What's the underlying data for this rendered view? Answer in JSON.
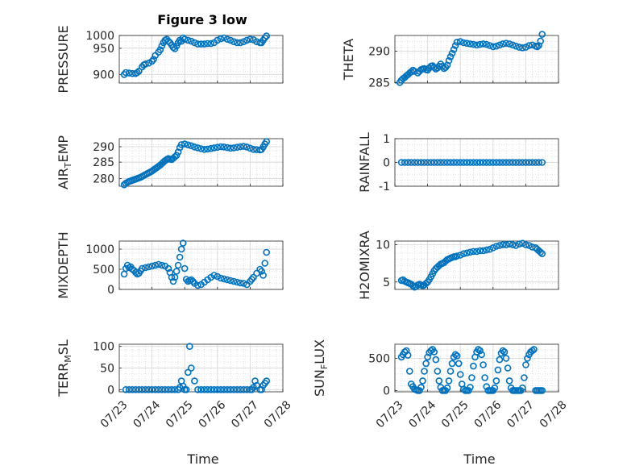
{
  "figure": {
    "title": "Figure 3 low",
    "x_label": "Time",
    "x_ticks": [
      "07/23",
      "07/24",
      "07/25",
      "07/26",
      "07/27",
      "07/28"
    ],
    "marker_color": "#0072BD",
    "grid": "major and minor dotted"
  },
  "chart_data": [
    {
      "type": "scatter",
      "id": "pressure",
      "ylabel": "PRESSURE",
      "ylim": [
        900,
        1000
      ],
      "yticks": [
        "900",
        "950",
        "1000"
      ],
      "xlim": [
        0,
        5
      ],
      "x": [
        0.15,
        0.2,
        0.3,
        0.4,
        0.5,
        0.55,
        0.6,
        0.7,
        0.75,
        0.8,
        0.9,
        1.0,
        1.05,
        1.1,
        1.2,
        1.25,
        1.3,
        1.35,
        1.4,
        1.45,
        1.5,
        1.55,
        1.6,
        1.65,
        1.7,
        1.75,
        1.8,
        1.85,
        1.9,
        1.95,
        2.0,
        2.1,
        2.2,
        2.3,
        2.4,
        2.5,
        2.6,
        2.7,
        2.8,
        2.9,
        3.0,
        3.1,
        3.2,
        3.3,
        3.4,
        3.5,
        3.6,
        3.7,
        3.8,
        3.9,
        4.0,
        4.1,
        4.2,
        4.3,
        4.35,
        4.4,
        4.45,
        4.5
      ],
      "y": [
        918,
        922,
        921,
        920,
        920,
        922,
        925,
        934,
        938,
        940,
        942,
        946,
        950,
        958,
        965,
        970,
        978,
        985,
        990,
        992,
        988,
        985,
        980,
        975,
        972,
        978,
        985,
        990,
        988,
        995,
        992,
        990,
        988,
        985,
        982,
        982,
        982,
        983,
        983,
        985,
        990,
        993,
        995,
        992,
        990,
        987,
        985,
        985,
        987,
        990,
        992,
        991,
        987,
        985,
        985,
        990,
        995,
        999
      ]
    },
    {
      "type": "scatter",
      "id": "theta",
      "ylabel": "THETA",
      "ylim": [
        284.5,
        293
      ],
      "yticks": [
        "285",
        "290"
      ],
      "xlim": [
        0,
        5
      ],
      "x": [
        0.15,
        0.2,
        0.25,
        0.3,
        0.35,
        0.4,
        0.45,
        0.5,
        0.55,
        0.6,
        0.7,
        0.75,
        0.8,
        0.85,
        0.9,
        0.95,
        1.0,
        1.05,
        1.1,
        1.15,
        1.2,
        1.25,
        1.3,
        1.35,
        1.4,
        1.45,
        1.5,
        1.55,
        1.6,
        1.65,
        1.7,
        1.75,
        1.8,
        1.85,
        1.9,
        2.0,
        2.1,
        2.2,
        2.3,
        2.4,
        2.5,
        2.6,
        2.7,
        2.8,
        2.9,
        3.0,
        3.1,
        3.2,
        3.3,
        3.4,
        3.5,
        3.6,
        3.7,
        3.8,
        3.9,
        4.0,
        4.1,
        4.2,
        4.3,
        4.35,
        4.4,
        4.45,
        4.5
      ],
      "y": [
        284.6,
        285.0,
        285.3,
        285.5,
        285.8,
        286.0,
        286.3,
        286.5,
        286.8,
        286.6,
        286.3,
        286.6,
        286.9,
        287.0,
        287.1,
        286.9,
        286.8,
        287.2,
        287.5,
        287.6,
        287.3,
        287.0,
        287.2,
        287.5,
        287.9,
        287.5,
        287.1,
        287.3,
        287.7,
        288.5,
        289.2,
        289.8,
        290.5,
        291.2,
        291.8,
        291.9,
        291.7,
        291.6,
        291.5,
        291.4,
        291.3,
        291.4,
        291.5,
        291.4,
        291.2,
        291.0,
        291.1,
        291.3,
        291.5,
        291.6,
        291.5,
        291.3,
        291.1,
        290.9,
        290.8,
        290.9,
        291.2,
        291.3,
        291.1,
        291.0,
        291.2,
        292.0,
        293.2
      ]
    },
    {
      "type": "scatter",
      "id": "air_temp",
      "ylabel": "AIR_TEMP",
      "ylim": [
        277,
        293
      ],
      "yticks": [
        "280",
        "285",
        "290"
      ],
      "xlim": [
        0,
        5
      ],
      "x": [
        0.15,
        0.2,
        0.25,
        0.3,
        0.35,
        0.4,
        0.45,
        0.5,
        0.55,
        0.6,
        0.65,
        0.7,
        0.75,
        0.8,
        0.85,
        0.9,
        0.95,
        1.0,
        1.05,
        1.1,
        1.15,
        1.2,
        1.25,
        1.3,
        1.35,
        1.4,
        1.45,
        1.5,
        1.55,
        1.6,
        1.65,
        1.7,
        1.75,
        1.8,
        1.85,
        1.9,
        2.0,
        2.1,
        2.2,
        2.3,
        2.4,
        2.5,
        2.6,
        2.7,
        2.8,
        2.9,
        3.0,
        3.1,
        3.2,
        3.3,
        3.4,
        3.5,
        3.6,
        3.7,
        3.8,
        3.9,
        4.0,
        4.1,
        4.2,
        4.3,
        4.35,
        4.4,
        4.45,
        4.5
      ],
      "y": [
        277.5,
        278.0,
        278.3,
        278.6,
        278.8,
        279.0,
        279.2,
        279.4,
        279.6,
        279.8,
        280.0,
        280.3,
        280.6,
        280.9,
        281.2,
        281.5,
        281.8,
        282.1,
        282.5,
        282.9,
        283.3,
        283.7,
        284.1,
        284.6,
        285.1,
        285.6,
        286.0,
        286.3,
        286.1,
        286.0,
        286.4,
        286.9,
        287.4,
        288.5,
        290.0,
        291.0,
        291.2,
        290.9,
        290.6,
        290.2,
        289.9,
        289.6,
        289.4,
        289.5,
        289.7,
        289.9,
        290.1,
        290.3,
        290.2,
        290.0,
        289.8,
        289.9,
        290.1,
        290.3,
        290.4,
        290.2,
        289.8,
        289.4,
        289.3,
        289.2,
        289.4,
        290.2,
        291.2,
        292.0
      ]
    },
    {
      "type": "scatter",
      "id": "rainfall",
      "ylabel": "RAINFALL",
      "ylim": [
        -1,
        1
      ],
      "yticks": [
        "-1",
        "0",
        "1"
      ],
      "xlim": [
        0,
        5
      ],
      "x": [
        0.2,
        0.3,
        0.4,
        0.5,
        0.6,
        0.7,
        0.8,
        0.9,
        1.0,
        1.1,
        1.2,
        1.3,
        1.4,
        1.5,
        1.6,
        1.7,
        1.8,
        1.9,
        2.0,
        2.1,
        2.2,
        2.3,
        2.4,
        2.5,
        2.6,
        2.7,
        2.8,
        2.9,
        3.0,
        3.1,
        3.2,
        3.3,
        3.4,
        3.5,
        3.6,
        3.7,
        3.8,
        3.9,
        4.0,
        4.1,
        4.2,
        4.3,
        4.4,
        4.5
      ],
      "y": [
        0,
        0,
        0,
        0,
        0,
        0,
        0,
        0,
        0,
        0,
        0,
        0,
        0,
        0,
        0,
        0,
        0,
        0,
        0,
        0,
        0,
        0,
        0,
        0,
        0,
        0,
        0,
        0,
        0,
        0,
        0,
        0,
        0,
        0,
        0,
        0,
        0,
        0,
        0,
        0,
        0,
        0,
        0,
        0
      ]
    },
    {
      "type": "scatter",
      "id": "mixdepth",
      "ylabel": "MIXDEPTH",
      "ylim": [
        0,
        1200
      ],
      "yticks": [
        "0",
        "500",
        "1000"
      ],
      "xlim": [
        0,
        5
      ],
      "x": [
        0.15,
        0.2,
        0.25,
        0.3,
        0.35,
        0.4,
        0.45,
        0.5,
        0.55,
        0.6,
        0.65,
        0.7,
        0.8,
        0.9,
        1.0,
        1.1,
        1.2,
        1.3,
        1.4,
        1.5,
        1.55,
        1.6,
        1.65,
        1.7,
        1.75,
        1.8,
        1.85,
        1.9,
        1.95,
        2.0,
        2.05,
        2.1,
        2.15,
        2.2,
        2.25,
        2.3,
        2.4,
        2.5,
        2.6,
        2.7,
        2.8,
        2.9,
        3.0,
        3.1,
        3.2,
        3.3,
        3.4,
        3.5,
        3.6,
        3.7,
        3.8,
        3.9,
        4.0,
        4.05,
        4.1,
        4.2,
        4.3,
        4.35,
        4.4,
        4.45,
        4.5
      ],
      "y": [
        380,
        520,
        600,
        540,
        560,
        500,
        470,
        420,
        380,
        400,
        460,
        520,
        540,
        560,
        580,
        600,
        620,
        600,
        580,
        520,
        420,
        300,
        200,
        300,
        450,
        600,
        800,
        1000,
        1150,
        520,
        250,
        200,
        220,
        240,
        200,
        150,
        100,
        120,
        180,
        240,
        300,
        350,
        320,
        280,
        260,
        240,
        220,
        200,
        180,
        160,
        150,
        120,
        200,
        250,
        300,
        400,
        500,
        450,
        350,
        650,
        920
      ]
    },
    {
      "type": "scatter",
      "id": "h2omixra",
      "ylabel": "H2OMIXRA",
      "ylim": [
        4,
        10.5
      ],
      "yticks": [
        "5",
        "10"
      ],
      "xlim": [
        0,
        5
      ],
      "x": [
        0.2,
        0.25,
        0.3,
        0.35,
        0.4,
        0.45,
        0.5,
        0.55,
        0.6,
        0.65,
        0.7,
        0.75,
        0.8,
        0.85,
        0.9,
        0.95,
        1.0,
        1.05,
        1.1,
        1.15,
        1.2,
        1.25,
        1.3,
        1.35,
        1.4,
        1.45,
        1.5,
        1.55,
        1.6,
        1.65,
        1.7,
        1.75,
        1.8,
        1.85,
        1.9,
        2.0,
        2.1,
        2.2,
        2.3,
        2.4,
        2.5,
        2.6,
        2.7,
        2.8,
        2.9,
        3.0,
        3.1,
        3.2,
        3.3,
        3.4,
        3.5,
        3.6,
        3.7,
        3.8,
        3.9,
        4.0,
        4.1,
        4.2,
        4.3,
        4.35,
        4.4,
        4.45,
        4.5
      ],
      "y": [
        5.2,
        5.3,
        5.1,
        5.0,
        4.9,
        4.8,
        4.7,
        4.5,
        4.3,
        4.4,
        4.6,
        4.7,
        4.6,
        4.5,
        4.6,
        4.8,
        5.0,
        5.3,
        5.7,
        6.1,
        6.5,
        6.8,
        7.0,
        7.2,
        7.4,
        7.5,
        7.6,
        7.8,
        8.0,
        8.1,
        8.2,
        8.3,
        8.4,
        8.4,
        8.5,
        8.6,
        8.8,
        8.9,
        9.0,
        9.1,
        9.1,
        9.2,
        9.2,
        9.3,
        9.4,
        9.6,
        9.8,
        9.9,
        10.0,
        10.0,
        10.1,
        10.0,
        9.9,
        10.1,
        10.2,
        10.0,
        9.9,
        9.7,
        9.6,
        9.4,
        9.2,
        9.0,
        8.8
      ]
    },
    {
      "type": "scatter",
      "id": "terr_msl",
      "ylabel": "TERR_MSL",
      "ylim": [
        -5,
        105
      ],
      "yticks": [
        "0",
        "50",
        "100"
      ],
      "xlim": [
        0,
        5
      ],
      "x": [
        0.2,
        0.3,
        0.4,
        0.5,
        0.6,
        0.7,
        0.8,
        0.9,
        1.0,
        1.1,
        1.2,
        1.3,
        1.4,
        1.5,
        1.6,
        1.7,
        1.8,
        1.85,
        1.9,
        1.95,
        2.0,
        2.05,
        2.1,
        2.15,
        2.2,
        2.3,
        2.4,
        2.5,
        2.6,
        2.7,
        2.8,
        2.9,
        3.0,
        3.1,
        3.2,
        3.3,
        3.4,
        3.5,
        3.6,
        3.7,
        3.8,
        3.9,
        4.0,
        4.05,
        4.1,
        4.15,
        4.2,
        4.3,
        4.35,
        4.4,
        4.45,
        4.5
      ],
      "y": [
        0,
        0,
        0,
        0,
        0,
        0,
        0,
        0,
        0,
        0,
        0,
        0,
        0,
        0,
        0,
        0,
        0,
        5,
        20,
        8,
        0,
        0,
        40,
        100,
        50,
        20,
        0,
        0,
        0,
        0,
        0,
        0,
        0,
        0,
        0,
        0,
        0,
        0,
        0,
        0,
        0,
        0,
        0,
        0,
        5,
        20,
        10,
        0,
        0,
        10,
        15,
        20
      ]
    },
    {
      "type": "scatter",
      "id": "sun_flux",
      "ylabel": "SUN_FLUX",
      "ylim": [
        -20,
        720
      ],
      "yticks": [
        "0",
        "500"
      ],
      "xlim": [
        0,
        5
      ],
      "x": [
        0.2,
        0.25,
        0.3,
        0.35,
        0.4,
        0.45,
        0.5,
        0.55,
        0.6,
        0.65,
        0.7,
        0.75,
        0.8,
        0.85,
        0.9,
        0.95,
        1.0,
        1.05,
        1.1,
        1.15,
        1.2,
        1.25,
        1.3,
        1.35,
        1.4,
        1.45,
        1.5,
        1.55,
        1.6,
        1.65,
        1.7,
        1.75,
        1.8,
        1.85,
        1.9,
        1.95,
        2.0,
        2.05,
        2.1,
        2.15,
        2.2,
        2.25,
        2.3,
        2.35,
        2.4,
        2.45,
        2.5,
        2.55,
        2.6,
        2.65,
        2.7,
        2.75,
        2.8,
        2.85,
        2.9,
        2.95,
        3.0,
        3.05,
        3.1,
        3.15,
        3.2,
        3.25,
        3.3,
        3.35,
        3.4,
        3.45,
        3.5,
        3.55,
        3.6,
        3.65,
        3.7,
        3.75,
        3.8,
        3.85,
        3.9,
        3.95,
        4.0,
        4.05,
        4.1,
        4.15,
        4.2,
        4.25,
        4.3,
        4.35,
        4.4,
        4.45,
        4.5
      ],
      "y": [
        520,
        560,
        600,
        620,
        550,
        300,
        100,
        60,
        20,
        10,
        0,
        0,
        50,
        150,
        300,
        420,
        520,
        590,
        620,
        640,
        600,
        480,
        300,
        150,
        50,
        0,
        0,
        0,
        40,
        150,
        300,
        420,
        520,
        560,
        540,
        420,
        250,
        100,
        20,
        0,
        0,
        0,
        50,
        200,
        380,
        520,
        600,
        640,
        620,
        560,
        400,
        200,
        60,
        0,
        0,
        0,
        0,
        40,
        150,
        320,
        480,
        580,
        620,
        600,
        500,
        350,
        150,
        40,
        0,
        0,
        0,
        0,
        0,
        0,
        40,
        200,
        400,
        500,
        560,
        600,
        620,
        640,
        0,
        0,
        0,
        0,
        0
      ]
    }
  ]
}
